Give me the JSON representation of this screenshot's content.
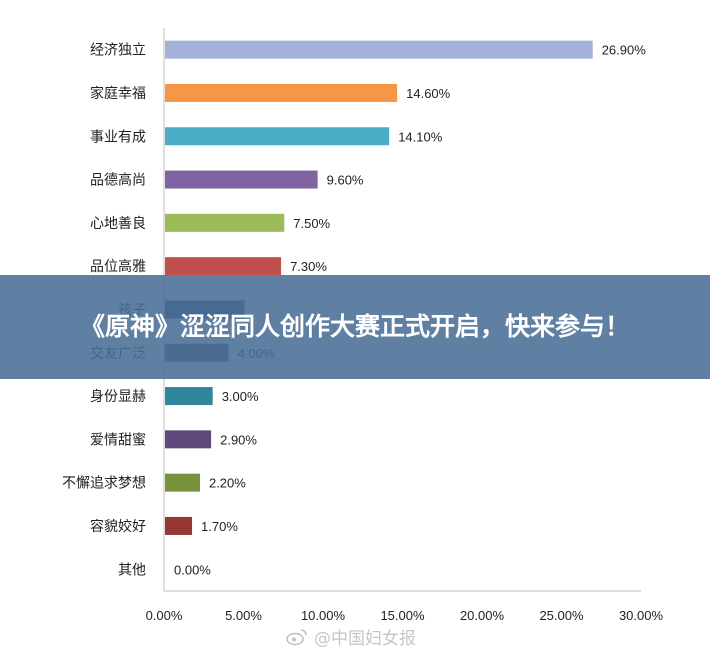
{
  "chart_data": {
    "type": "bar",
    "orientation": "horizontal",
    "categories": [
      "经济独立",
      "家庭幸福",
      "事业有成",
      "品德高尚",
      "心地善良",
      "品位高雅",
      "孩子",
      "交友广泛",
      "身份显赫",
      "爱情甜蜜",
      "不懈追求梦想",
      "容貌姣好",
      "其他"
    ],
    "values": [
      26.9,
      14.6,
      14.1,
      9.6,
      7.5,
      7.3,
      5.0,
      4.0,
      3.0,
      2.9,
      2.2,
      1.7,
      0.0
    ],
    "value_labels": [
      "26.90%",
      "14.60%",
      "14.10%",
      "9.60%",
      "7.50%",
      "7.30%",
      "",
      "4.00%",
      "3.00%",
      "2.90%",
      "2.20%",
      "1.70%",
      "0.00%"
    ],
    "colors": [
      "#a5b1d8",
      "#f79646",
      "#4bacc6",
      "#8064a2",
      "#9bbb59",
      "#c0504d",
      "#2c4d75",
      "#4f5a63",
      "#31859c",
      "#604a7b",
      "#76933c",
      "#953735",
      "#1f497d"
    ],
    "xticks": [
      "0.00%",
      "5.00%",
      "10.00%",
      "15.00%",
      "20.00%",
      "25.00%",
      "30.00%"
    ],
    "xlim": [
      0,
      30
    ],
    "grid": false,
    "legend": "none"
  },
  "banner": {
    "title": "《原神》涩涩同人创作大赛正式开启，快来参与！"
  },
  "watermark": {
    "text": "@中国妇女报",
    "icon": "weibo-icon"
  }
}
